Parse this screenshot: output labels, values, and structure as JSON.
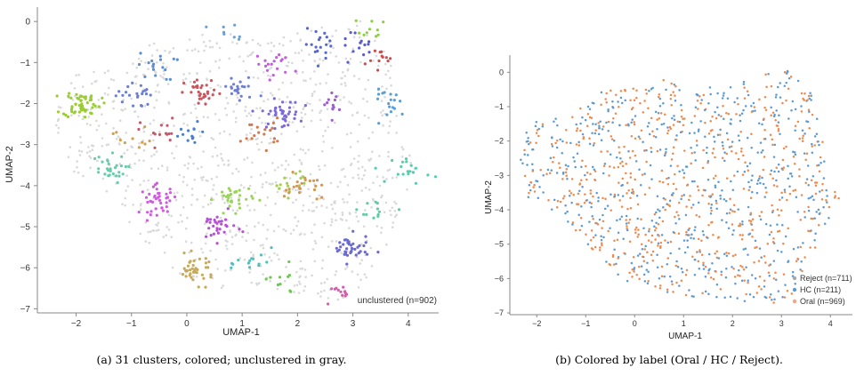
{
  "chart_data": [
    {
      "type": "scatter",
      "caption": "(a) 31 clusters, colored; unclustered in gray.",
      "xlabel": "UMAP-1",
      "ylabel": "UMAP-2",
      "xlim": [
        -2.7,
        4.55
      ],
      "ylim": [
        -7.1,
        0.35
      ],
      "xticks": [
        -2,
        -1,
        0,
        1,
        2,
        3,
        4
      ],
      "xtick_labels": [
        "−2",
        "−1",
        "0",
        "1",
        "2",
        "3",
        "4"
      ],
      "yticks": [
        0,
        -1,
        -2,
        -3,
        -4,
        -5,
        -6,
        -7
      ],
      "ytick_labels": [
        "0",
        "−1",
        "−2",
        "−3",
        "−4",
        "−5",
        "−6",
        "−7"
      ],
      "annotation": "unclustered (n=902)",
      "grid": false,
      "unclustered_color": "#d9d9d9",
      "clusters": [
        {
          "x": -1.9,
          "y": -2.0,
          "n": 55,
          "color": "#9acd32"
        },
        {
          "x": -1.45,
          "y": -3.6,
          "n": 28,
          "color": "#66cdaa"
        },
        {
          "x": -0.55,
          "y": -1.1,
          "n": 18,
          "color": "#5b8ed6"
        },
        {
          "x": -0.95,
          "y": -1.8,
          "n": 22,
          "color": "#6a7fd4"
        },
        {
          "x": -1.0,
          "y": -2.8,
          "n": 10,
          "color": "#d4a04a"
        },
        {
          "x": -0.5,
          "y": -2.7,
          "n": 14,
          "color": "#c15b6e"
        },
        {
          "x": 0.05,
          "y": -2.8,
          "n": 14,
          "color": "#4a7fd0"
        },
        {
          "x": 0.3,
          "y": -1.75,
          "n": 30,
          "color": "#c9565d"
        },
        {
          "x": 0.95,
          "y": -1.65,
          "n": 22,
          "color": "#6d7fd3"
        },
        {
          "x": 1.35,
          "y": -2.7,
          "n": 18,
          "color": "#d07a4e"
        },
        {
          "x": 1.6,
          "y": -1.05,
          "n": 18,
          "color": "#c65be0"
        },
        {
          "x": 1.7,
          "y": -2.25,
          "n": 40,
          "color": "#7b6ad8"
        },
        {
          "x": 2.6,
          "y": -2.0,
          "n": 12,
          "color": "#9d5cd4"
        },
        {
          "x": 2.45,
          "y": -0.55,
          "n": 18,
          "color": "#5567d0"
        },
        {
          "x": 3.0,
          "y": -0.55,
          "n": 14,
          "color": "#5a5ad0"
        },
        {
          "x": 3.35,
          "y": -0.25,
          "n": 10,
          "color": "#8fcf3f"
        },
        {
          "x": 3.6,
          "y": -0.95,
          "n": 12,
          "color": "#d14a4a"
        },
        {
          "x": 3.7,
          "y": -2.0,
          "n": 18,
          "color": "#5b9ed6"
        },
        {
          "x": 4.05,
          "y": -3.6,
          "n": 18,
          "color": "#4fd0b0"
        },
        {
          "x": 0.65,
          "y": -0.3,
          "n": 8,
          "color": "#6a9fd8"
        },
        {
          "x": -0.5,
          "y": -4.35,
          "n": 40,
          "color": "#d05be0"
        },
        {
          "x": 0.85,
          "y": -4.3,
          "n": 32,
          "color": "#9cd35a"
        },
        {
          "x": 1.85,
          "y": -3.9,
          "n": 14,
          "color": "#a5cf4f"
        },
        {
          "x": 2.1,
          "y": -4.05,
          "n": 22,
          "color": "#d4974f"
        },
        {
          "x": 0.55,
          "y": -5.0,
          "n": 30,
          "color": "#b84fd4"
        },
        {
          "x": 0.15,
          "y": -6.05,
          "n": 38,
          "color": "#c8a95a"
        },
        {
          "x": 1.25,
          "y": -5.9,
          "n": 14,
          "color": "#4fc0c0"
        },
        {
          "x": 1.7,
          "y": -6.35,
          "n": 10,
          "color": "#6cc94f"
        },
        {
          "x": 2.75,
          "y": -6.65,
          "n": 12,
          "color": "#d95bb0"
        },
        {
          "x": 2.95,
          "y": -5.55,
          "n": 40,
          "color": "#6a6ad0"
        },
        {
          "x": 3.45,
          "y": -4.55,
          "n": 12,
          "color": "#5ad0a0"
        }
      ]
    },
    {
      "type": "scatter",
      "caption": "(b) Colored by label (Oral / HC / Reject).",
      "xlabel": "UMAP-1",
      "ylabel": "UMAP-2",
      "xlim": [
        -2.55,
        4.45
      ],
      "ylim": [
        -7.05,
        0.5
      ],
      "xticks": [
        -2,
        -1,
        0,
        1,
        2,
        3,
        4
      ],
      "xtick_labels": [
        "−2",
        "−1",
        "0",
        "1",
        "2",
        "3",
        "4"
      ],
      "yticks": [
        0,
        -1,
        -2,
        -3,
        -4,
        -5,
        -6,
        -7
      ],
      "ytick_labels": [
        "0",
        "−1",
        "−2",
        "−3",
        "−4",
        "−5",
        "−6",
        "−7"
      ],
      "grid": false,
      "legend_position": "bottom-right",
      "series": [
        {
          "name": "Reject (n=711)",
          "n": 711,
          "color": "#a9a9a9"
        },
        {
          "name": "HC (n=211)",
          "n": 211,
          "color": "#5b9bd5"
        },
        {
          "name": "Oral (n=969)",
          "n": 969,
          "color": "#f4a582"
        }
      ],
      "point_colors": {
        "hc_main": "#5b9bd5",
        "oral_main": "#ef8a4d"
      }
    }
  ]
}
